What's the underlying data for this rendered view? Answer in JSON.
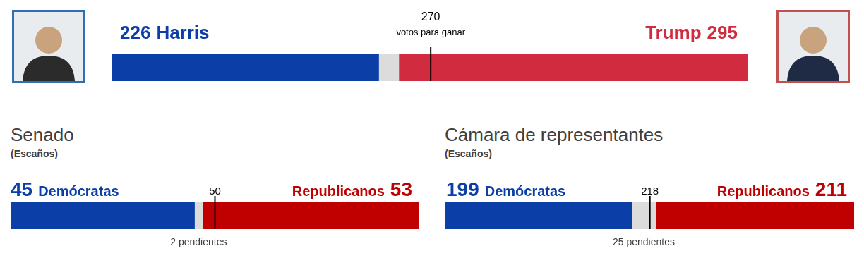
{
  "chart_data": [
    {
      "type": "bar",
      "orientation": "horizontal",
      "stacked": true,
      "data_labels": true,
      "tick_labels": false,
      "grid": false,
      "xlim": [
        0,
        538
      ],
      "threshold": 270,
      "threshold_label": "votos para ganar",
      "series": [
        {
          "name": "Harris",
          "color": "#0b3fa7",
          "values": [
            226
          ]
        },
        {
          "color": "#dcdcdc",
          "values": [
            17
          ]
        },
        {
          "name": "Trump",
          "color": "#d12b3f",
          "values": [
            295
          ]
        }
      ]
    },
    {
      "type": "bar",
      "orientation": "horizontal",
      "stacked": true,
      "data_labels": true,
      "tick_labels": false,
      "grid": false,
      "title": "Senado",
      "subtitle": "(Escaños)",
      "xlim": [
        0,
        100
      ],
      "threshold": 50,
      "series": [
        {
          "name": "Demócratas",
          "color": "#0b3fa7",
          "values": [
            45
          ]
        },
        {
          "color": "#dcdcdc",
          "values": [
            2
          ],
          "value_labels": [
            "2 pendientes"
          ]
        },
        {
          "name": "Republicanos",
          "color": "#c00000",
          "values": [
            53
          ]
        }
      ]
    },
    {
      "type": "bar",
      "orientation": "horizontal",
      "stacked": true,
      "data_labels": true,
      "tick_labels": false,
      "grid": false,
      "title": "Cámara de representantes",
      "subtitle": "(Escaños)",
      "xlim": [
        0,
        435
      ],
      "threshold": 218,
      "series": [
        {
          "name": "Demócratas",
          "color": "#0b3fa7",
          "values": [
            199
          ]
        },
        {
          "color": "#dcdcdc",
          "values": [
            25
          ],
          "value_labels": [
            "25 pendientes"
          ]
        },
        {
          "name": "Republicanos",
          "color": "#c00000",
          "values": [
            211
          ]
        }
      ]
    }
  ]
}
